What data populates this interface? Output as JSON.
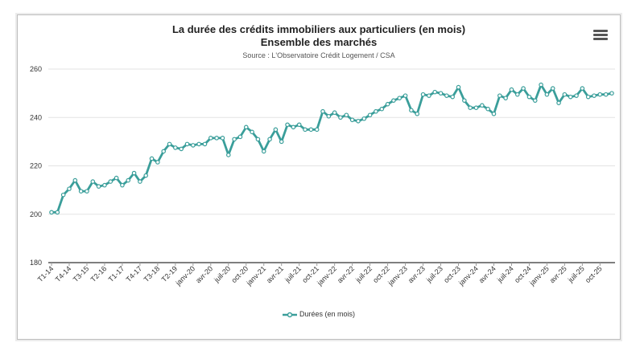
{
  "chart_data": {
    "type": "line",
    "title": "La durée des crédits immobiliers aux particuliers (en mois)",
    "subtitle": "Ensemble des marchés",
    "source": "Source : L'Observatoire Crédit Logement / CSA",
    "ylim": [
      180,
      260
    ],
    "yticks": [
      180,
      200,
      220,
      240,
      260
    ],
    "grid": true,
    "legend": "bottom-center",
    "color": "#3a9e9a",
    "tick_labels": [
      "T1-14",
      "T4-14",
      "T3-15",
      "T2-16",
      "T1-17",
      "T4-17",
      "T3-18",
      "T2-19",
      "janv-20",
      "avr-20",
      "juil-20",
      "oct-20",
      "janv-21",
      "avr-21",
      "juil-21",
      "oct-21",
      "janv-22",
      "avr-22",
      "juil-22",
      "oct-22",
      "janv-23",
      "avr-23",
      "juil-23",
      "oct-23",
      "janv-24",
      "avr-24",
      "juil-24",
      "oct-24",
      "janv-25",
      "avr-25",
      "juil-25",
      "oct-25"
    ],
    "tick_indices": [
      0,
      3,
      6,
      9,
      12,
      15,
      18,
      21,
      24,
      27,
      30,
      33,
      36,
      39,
      42,
      45,
      48,
      51,
      54,
      57,
      60,
      63,
      66,
      69,
      72,
      75,
      78,
      81,
      84,
      87,
      90,
      93
    ],
    "series": [
      {
        "name": "Durées (en mois)",
        "values": [
          200.8,
          200.8,
          208,
          210.5,
          214,
          209.5,
          209.5,
          213.5,
          211.5,
          212,
          213.5,
          215,
          212,
          214,
          217,
          213.5,
          216,
          223,
          221.5,
          226,
          229,
          227.5,
          227,
          229,
          228.5,
          229,
          229,
          231.5,
          231.5,
          231.5,
          224.5,
          231,
          232,
          236,
          234,
          231,
          226,
          231,
          235,
          230,
          237,
          236,
          237,
          235,
          235,
          235,
          242.5,
          240.5,
          242,
          240,
          241,
          239,
          238.5,
          239.5,
          241,
          242.5,
          243.5,
          245.5,
          247,
          248,
          249,
          243,
          241.5,
          249.5,
          249,
          250.5,
          250,
          249,
          248.5,
          252.5,
          247,
          244,
          244,
          245,
          243.5,
          241.5,
          249,
          248,
          251.5,
          249.5,
          252,
          248.5,
          247,
          253.5,
          249.5,
          252,
          246,
          249.5,
          248.5,
          249,
          252,
          248.5,
          249,
          249.5,
          249.5,
          250
        ]
      }
    ]
  }
}
